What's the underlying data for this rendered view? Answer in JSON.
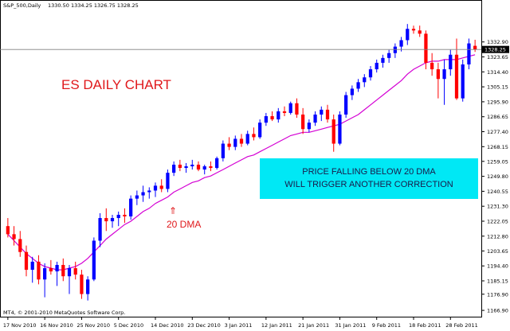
{
  "header": {
    "symbol": "S&P_500,Daily",
    "ohlc": "1330.50 1334.25 1326.75 1328.25"
  },
  "annotations": {
    "title": "ES DAILY CHART",
    "dma_arrow": "⇑",
    "dma_label": "20 DMA",
    "note_line1": "PRICE FALLING BELOW 20 DMA",
    "note_line2": "WILL TRIGGER ANOTHER CORRECTION",
    "copyright": "MT4, © 2001-2010 MetaQuotes Software Corp."
  },
  "price_tag": "1328.25",
  "colors": {
    "bull": "#0000ff",
    "bear": "#ff0000",
    "ma": "#d400d4",
    "note_bg": "#00e8f5",
    "price_line": "#808080"
  },
  "chart_data": {
    "type": "candlestick",
    "ylim": [
      1163,
      1349
    ],
    "y_ticks": [
      "1332.90",
      "1323.65",
      "1314.40",
      "1305.15",
      "1295.90",
      "1286.65",
      "1277.40",
      "1268.15",
      "1259.05",
      "1249.80",
      "1240.55",
      "1231.30",
      "1222.05",
      "1212.80",
      "1203.65",
      "1194.40",
      "1185.15",
      "1176.90",
      "1166.90"
    ],
    "x_labels": [
      {
        "i": 0,
        "t": "17 Nov 2010"
      },
      {
        "i": 6,
        "t": "16 Nov 2010"
      },
      {
        "i": 12,
        "t": "25 Nov 2010"
      },
      {
        "i": 18,
        "t": "5 Dec 2010"
      },
      {
        "i": 24,
        "t": "14 Dec 2010"
      },
      {
        "i": 30,
        "t": "23 Dec 2010"
      },
      {
        "i": 36,
        "t": "3 Jan 2011"
      },
      {
        "i": 42,
        "t": "12 Jan 2011"
      },
      {
        "i": 48,
        "t": "21 Jan 2011"
      },
      {
        "i": 54,
        "t": "31 Jan 2011"
      },
      {
        "i": 60,
        "t": "9 Feb 2011"
      },
      {
        "i": 66,
        "t": "18 Feb 2011"
      },
      {
        "i": 72,
        "t": "28 Feb 2011"
      }
    ],
    "candles": [
      [
        1219,
        1224,
        1212,
        1214
      ],
      [
        1214,
        1219,
        1207,
        1211
      ],
      [
        1211,
        1216,
        1200,
        1203
      ],
      [
        1203,
        1207,
        1188,
        1192
      ],
      [
        1192,
        1200,
        1184,
        1197
      ],
      [
        1197,
        1201,
        1183,
        1186
      ],
      [
        1186,
        1196,
        1175,
        1193
      ],
      [
        1193,
        1198,
        1189,
        1191
      ],
      [
        1191,
        1197,
        1182,
        1195
      ],
      [
        1195,
        1199,
        1185,
        1188
      ],
      [
        1188,
        1195,
        1177,
        1193
      ],
      [
        1193,
        1197,
        1186,
        1189
      ],
      [
        1189,
        1192,
        1174,
        1177
      ],
      [
        1177,
        1188,
        1173,
        1186
      ],
      [
        1186,
        1212,
        1185,
        1210
      ],
      [
        1210,
        1227,
        1206,
        1224
      ],
      [
        1224,
        1230,
        1216,
        1222
      ],
      [
        1222,
        1226,
        1218,
        1224
      ],
      [
        1224,
        1228,
        1219,
        1226
      ],
      [
        1226,
        1230,
        1221,
        1225
      ],
      [
        1225,
        1238,
        1223,
        1236
      ],
      [
        1236,
        1241,
        1232,
        1238
      ],
      [
        1238,
        1244,
        1234,
        1240
      ],
      [
        1240,
        1243,
        1236,
        1241
      ],
      [
        1241,
        1246,
        1237,
        1244
      ],
      [
        1244,
        1248,
        1240,
        1242
      ],
      [
        1242,
        1254,
        1240,
        1252
      ],
      [
        1252,
        1259,
        1250,
        1257
      ],
      [
        1257,
        1260,
        1253,
        1255
      ],
      [
        1255,
        1258,
        1252,
        1256
      ],
      [
        1256,
        1260,
        1254,
        1257
      ],
      [
        1257,
        1259,
        1253,
        1254
      ],
      [
        1254,
        1257,
        1251,
        1256
      ],
      [
        1256,
        1259,
        1253,
        1255
      ],
      [
        1255,
        1262,
        1254,
        1261
      ],
      [
        1261,
        1272,
        1259,
        1270
      ],
      [
        1270,
        1274,
        1266,
        1268
      ],
      [
        1268,
        1275,
        1266,
        1273
      ],
      [
        1273,
        1276,
        1268,
        1270
      ],
      [
        1270,
        1278,
        1269,
        1276
      ],
      [
        1276,
        1280,
        1272,
        1274
      ],
      [
        1274,
        1285,
        1273,
        1283
      ],
      [
        1283,
        1289,
        1281,
        1287
      ],
      [
        1287,
        1290,
        1284,
        1285
      ],
      [
        1285,
        1292,
        1283,
        1290
      ],
      [
        1290,
        1293,
        1287,
        1289
      ],
      [
        1289,
        1296,
        1288,
        1295
      ],
      [
        1295,
        1298,
        1286,
        1288
      ],
      [
        1288,
        1292,
        1276,
        1279
      ],
      [
        1279,
        1285,
        1277,
        1283
      ],
      [
        1283,
        1290,
        1281,
        1288
      ],
      [
        1288,
        1293,
        1284,
        1291
      ],
      [
        1291,
        1294,
        1283,
        1285
      ],
      [
        1285,
        1288,
        1265,
        1270
      ],
      [
        1270,
        1290,
        1269,
        1288
      ],
      [
        1288,
        1302,
        1286,
        1300
      ],
      [
        1300,
        1306,
        1297,
        1304
      ],
      [
        1304,
        1310,
        1302,
        1308
      ],
      [
        1308,
        1313,
        1305,
        1311
      ],
      [
        1311,
        1318,
        1309,
        1316
      ],
      [
        1316,
        1322,
        1314,
        1320
      ],
      [
        1320,
        1325,
        1317,
        1323
      ],
      [
        1323,
        1328,
        1320,
        1326
      ],
      [
        1326,
        1332,
        1323,
        1330
      ],
      [
        1330,
        1336,
        1327,
        1334
      ],
      [
        1334,
        1344,
        1331,
        1341
      ],
      [
        1341,
        1343,
        1338,
        1340
      ],
      [
        1340,
        1343,
        1336,
        1338
      ],
      [
        1338,
        1340,
        1316,
        1320
      ],
      [
        1320,
        1326,
        1312,
        1316
      ],
      [
        1316,
        1320,
        1298,
        1310
      ],
      [
        1310,
        1322,
        1294,
        1316
      ],
      [
        1316,
        1328,
        1312,
        1325
      ],
      [
        1325,
        1335,
        1297,
        1298
      ],
      [
        1298,
        1322,
        1296,
        1319
      ],
      [
        1319,
        1335,
        1316,
        1332
      ],
      [
        1330.5,
        1334.25,
        1326.75,
        1328.25
      ]
    ],
    "ma20": [
      1214,
      1210,
      1206,
      1202,
      1199,
      1196,
      1194,
      1193,
      1192,
      1192,
      1193,
      1194,
      1196,
      1199,
      1203,
      1207,
      1211,
      1214,
      1217,
      1220,
      1222,
      1225,
      1228,
      1230,
      1233,
      1235,
      1237,
      1240,
      1242,
      1244,
      1246,
      1247,
      1249,
      1250,
      1252,
      1254,
      1256,
      1258,
      1260,
      1262,
      1263,
      1265,
      1267,
      1269,
      1271,
      1273,
      1275,
      1276,
      1277,
      1277,
      1278,
      1279,
      1280,
      1281,
      1282,
      1284,
      1286,
      1288,
      1291,
      1294,
      1297,
      1300,
      1303,
      1306,
      1309,
      1313,
      1316,
      1318,
      1320,
      1321,
      1321,
      1322,
      1322,
      1322,
      1323,
      1324,
      1325
    ]
  }
}
